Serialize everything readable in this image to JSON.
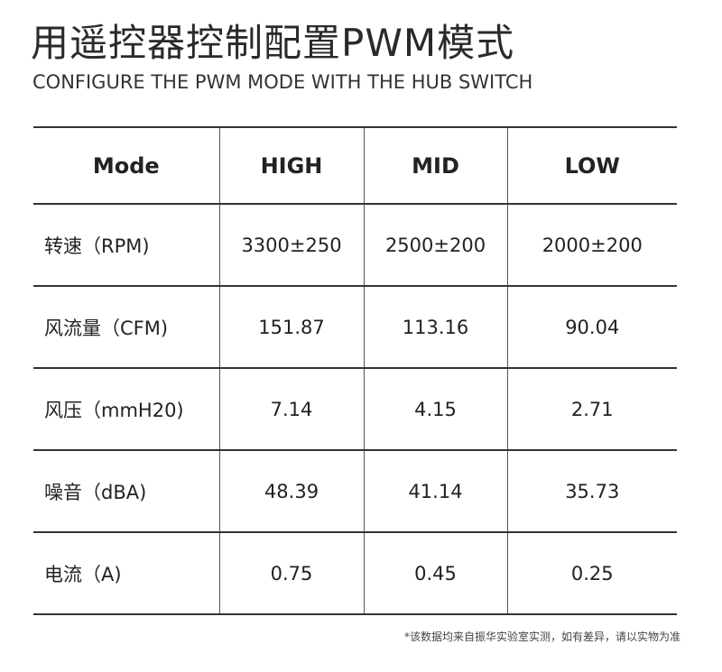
{
  "header": {
    "title": "用遥控器控制配置PWM模式",
    "subtitle": "CONFIGURE THE PWM MODE WITH THE HUB SWITCH"
  },
  "table": {
    "columns": [
      "Mode",
      "HIGH",
      "MID",
      "LOW"
    ],
    "rows": [
      [
        "转速（RPM)",
        "3300±250",
        "2500±200",
        "2000±200"
      ],
      [
        "风流量（CFM)",
        "151.87",
        "113.16",
        "90.04"
      ],
      [
        "风压（mmH20)",
        "7.14",
        "4.15",
        "2.71"
      ],
      [
        "噪音（dBA)",
        "48.39",
        "41.14",
        "35.73"
      ],
      [
        "电流（A)",
        "0.75",
        "0.45",
        "0.25"
      ]
    ]
  },
  "footnote": "*该数据均来自振华实验室实测，如有差异，请以实物为准"
}
